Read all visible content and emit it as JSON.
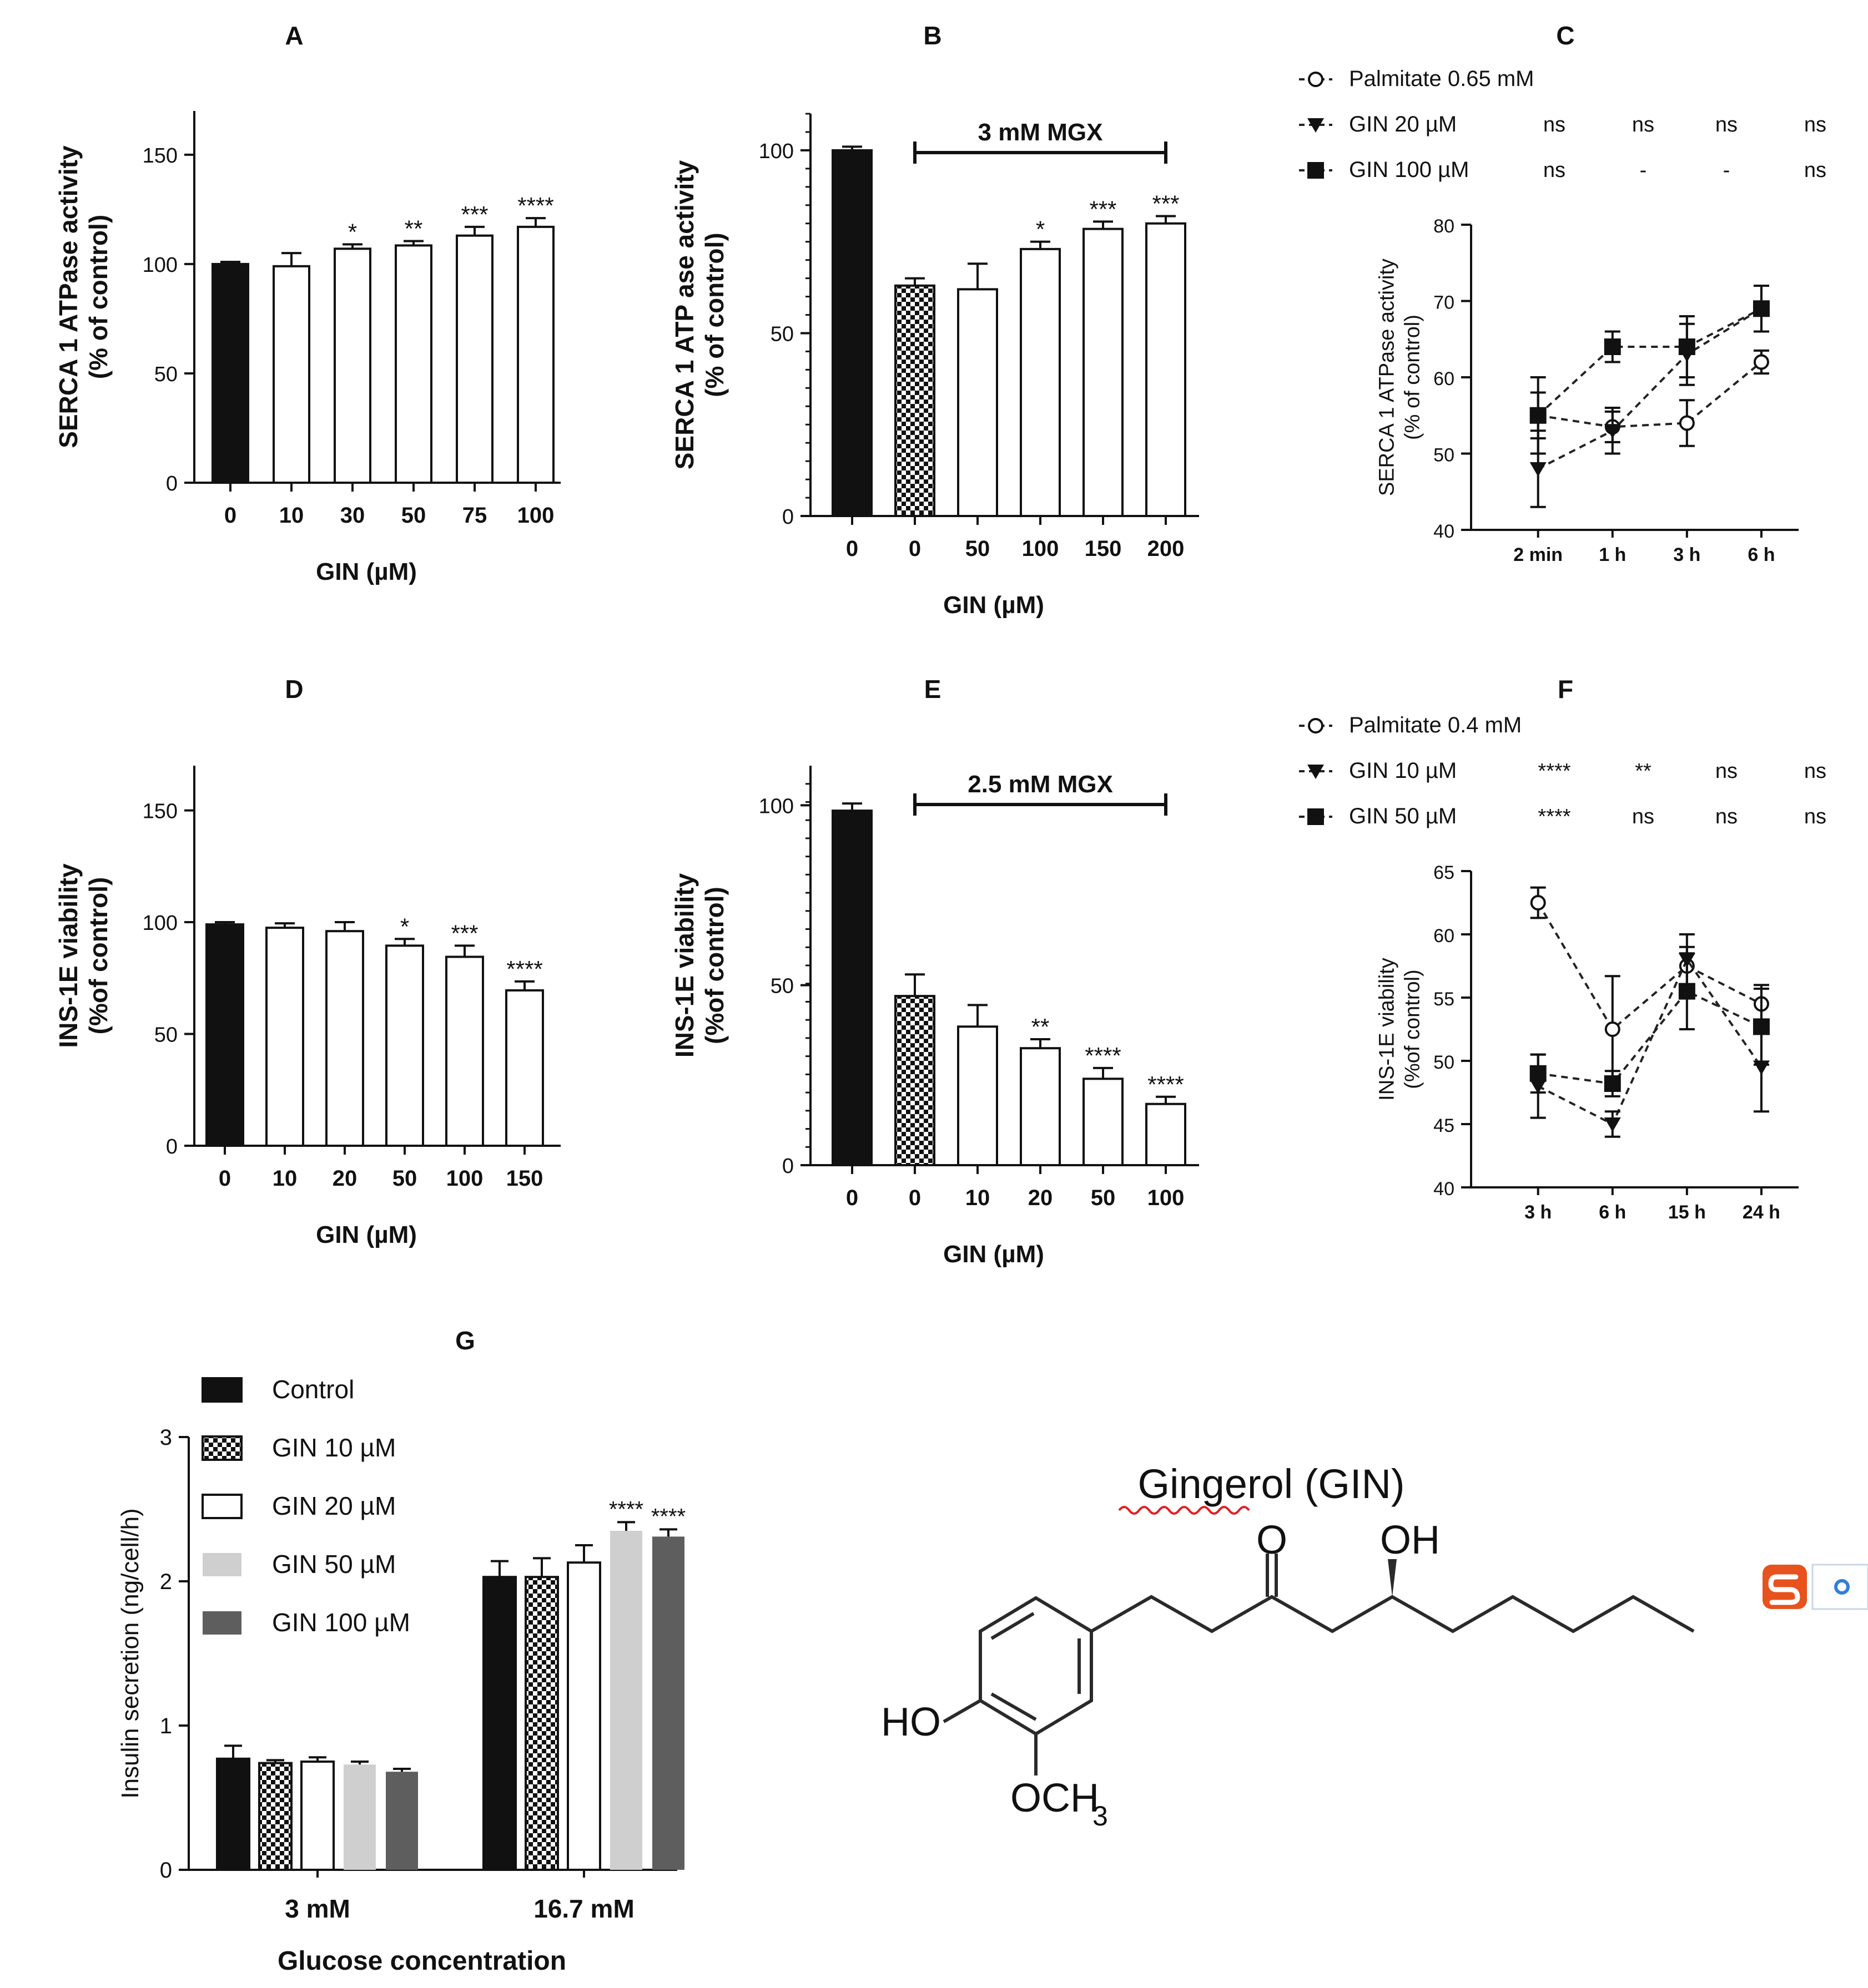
{
  "chart_data": [
    {
      "panel": "A",
      "type": "bar",
      "categories": [
        "0",
        "10",
        "30",
        "50",
        "75",
        "100"
      ],
      "values": [
        100,
        99,
        107,
        108.5,
        113,
        117
      ],
      "errors": [
        1,
        6,
        2,
        2,
        4,
        4
      ],
      "annotations": [
        "",
        "",
        "*",
        "**",
        "***",
        "****"
      ],
      "fills": [
        "solid",
        "open",
        "open",
        "open",
        "open",
        "open"
      ],
      "xlabel": "GIN (µM)",
      "ylabel_lines": [
        "SERCA 1 ATPase activity",
        "(% of control)"
      ],
      "ylim": [
        0,
        170
      ],
      "yticks": [
        0,
        50,
        100,
        150
      ]
    },
    {
      "panel": "B",
      "type": "bar",
      "categories": [
        "0",
        "0",
        "50",
        "100",
        "150",
        "200"
      ],
      "values": [
        100,
        63,
        62,
        73,
        78.5,
        80
      ],
      "errors": [
        1,
        2,
        7,
        2,
        2,
        2
      ],
      "annotations": [
        "",
        "",
        "",
        "*",
        "***",
        "***"
      ],
      "fills": [
        "solid",
        "check",
        "open",
        "open",
        "open",
        "open"
      ],
      "bracket": {
        "label": "3 mM MGX",
        "from_index": 1,
        "to_index": 5
      },
      "xlabel": "GIN (µM)",
      "ylabel_lines": [
        "SERCA 1 ATP ase activity",
        "(% of control)"
      ],
      "ylim": [
        0,
        110
      ],
      "yticks": [
        0,
        50,
        100
      ]
    },
    {
      "panel": "C",
      "type": "line",
      "x": [
        "2 min",
        "1 h",
        "3 h",
        "6 h"
      ],
      "series": [
        {
          "name": "Palmitate 0.65 mM",
          "marker": "open-circle",
          "values": [
            55,
            53.5,
            54,
            62
          ],
          "errors": [
            3,
            2,
            3,
            1.5
          ],
          "sig": []
        },
        {
          "name": "GIN 20 µM",
          "marker": "triangle-down",
          "values": [
            48,
            53,
            63,
            69
          ],
          "errors": [
            5,
            3,
            4,
            3
          ],
          "sig": [
            "ns",
            "ns",
            "ns",
            "ns"
          ]
        },
        {
          "name": "GIN 100 µM",
          "marker": "square",
          "values": [
            55,
            64,
            64,
            69
          ],
          "errors": [
            5,
            2,
            4,
            3
          ],
          "sig": [
            "ns",
            "-",
            "-",
            "ns"
          ]
        }
      ],
      "ylabel_lines": [
        "SERCA 1 ATPase activity",
        "(% of control)"
      ],
      "ylim": [
        40,
        80
      ],
      "yticks": [
        40,
        50,
        60,
        70,
        80
      ]
    },
    {
      "panel": "D",
      "type": "bar",
      "categories": [
        "0",
        "10",
        "20",
        "50",
        "100",
        "150"
      ],
      "values": [
        99,
        97.5,
        96,
        89.5,
        84.5,
        69.5
      ],
      "errors": [
        1,
        2,
        4,
        3,
        5,
        4
      ],
      "annotations": [
        "",
        "",
        "",
        "*",
        "***",
        "****"
      ],
      "fills": [
        "solid",
        "open",
        "open",
        "open",
        "open",
        "open"
      ],
      "xlabel": "GIN (µM)",
      "ylabel_lines": [
        "INS-1E viability",
        "(%of control)"
      ],
      "ylim": [
        0,
        170
      ],
      "yticks": [
        0,
        50,
        100,
        150
      ]
    },
    {
      "panel": "E",
      "type": "bar",
      "categories": [
        "0",
        "0",
        "10",
        "20",
        "50",
        "100"
      ],
      "values": [
        98.5,
        47,
        38.5,
        32.5,
        24,
        17
      ],
      "errors": [
        2,
        6,
        6,
        2.5,
        3,
        2
      ],
      "annotations": [
        "",
        "",
        "",
        "**",
        "****",
        "****"
      ],
      "fills": [
        "solid",
        "check",
        "open",
        "open",
        "open",
        "open"
      ],
      "bracket": {
        "label": "2.5 mM MGX",
        "from_index": 1,
        "to_index": 5
      },
      "xlabel": "GIN (µM)",
      "ylabel_lines": [
        "INS-1E viability",
        "(%of control)"
      ],
      "ylim": [
        0,
        111
      ],
      "yticks": [
        0,
        50,
        100
      ]
    },
    {
      "panel": "F",
      "type": "line",
      "x": [
        "3 h",
        "6 h",
        "15 h",
        "24 h"
      ],
      "series": [
        {
          "name": "Palmitate 0.4 mM",
          "marker": "open-circle",
          "values": [
            62.5,
            52.5,
            57.5,
            54.5
          ],
          "errors": [
            1.2,
            4.2,
            1.5,
            1.5
          ],
          "sig": []
        },
        {
          "name": "GIN 10 µM",
          "marker": "triangle-down",
          "values": [
            48,
            45,
            58,
            49.5
          ],
          "errors": [
            2.5,
            1,
            2,
            3.5
          ],
          "sig": [
            "****",
            "**",
            "ns",
            "ns"
          ]
        },
        {
          "name": "GIN 50 µM",
          "marker": "square",
          "values": [
            49,
            48.2,
            55.5,
            52.7
          ],
          "errors": [
            1.5,
            1,
            3,
            3
          ],
          "sig": [
            "****",
            "ns",
            "ns",
            "ns"
          ]
        }
      ],
      "ylabel_lines": [
        "INS-1E viability",
        "(%of control)"
      ],
      "ylim": [
        40,
        65
      ],
      "yticks": [
        40,
        45,
        50,
        55,
        60,
        65
      ]
    },
    {
      "panel": "G",
      "type": "bar",
      "categories": [
        "3 mM",
        "16.7 mM"
      ],
      "series": [
        {
          "name": "Control",
          "fill": "black",
          "values": [
            0.77,
            2.03
          ],
          "errors": [
            0.09,
            0.11
          ],
          "annotations": [
            "",
            ""
          ]
        },
        {
          "name": "GIN 10 µM",
          "fill": "check",
          "values": [
            0.74,
            2.03
          ],
          "errors": [
            0.02,
            0.13
          ],
          "annotations": [
            "",
            ""
          ]
        },
        {
          "name": "GIN 20 µM",
          "fill": "open",
          "values": [
            0.75,
            2.13
          ],
          "errors": [
            0.03,
            0.12
          ],
          "annotations": [
            "",
            ""
          ]
        },
        {
          "name": "GIN 50 µM",
          "fill": "lightgray",
          "values": [
            0.73,
            2.35
          ],
          "errors": [
            0.02,
            0.06
          ],
          "annotations": [
            "",
            "****"
          ]
        },
        {
          "name": "GIN 100 µM",
          "fill": "darkgray",
          "values": [
            0.68,
            2.31
          ],
          "errors": [
            0.02,
            0.05
          ],
          "annotations": [
            "",
            "****"
          ]
        }
      ],
      "xlabel": "Glucose concentration",
      "ylabel": "Insulin secretion (ng/cell/h)",
      "ylim": [
        0,
        3
      ],
      "yticks": [
        0,
        1,
        2,
        3
      ]
    }
  ],
  "structure": {
    "title": "Gingerol (GIN)",
    "group_labels": [
      "O",
      "OH",
      "HO",
      "OCH",
      "3"
    ]
  },
  "colors": {
    "ink": "#111111",
    "light_gray": "#cfcfcf",
    "dark_gray": "#5e5e5e",
    "badge": "#e8521c"
  }
}
